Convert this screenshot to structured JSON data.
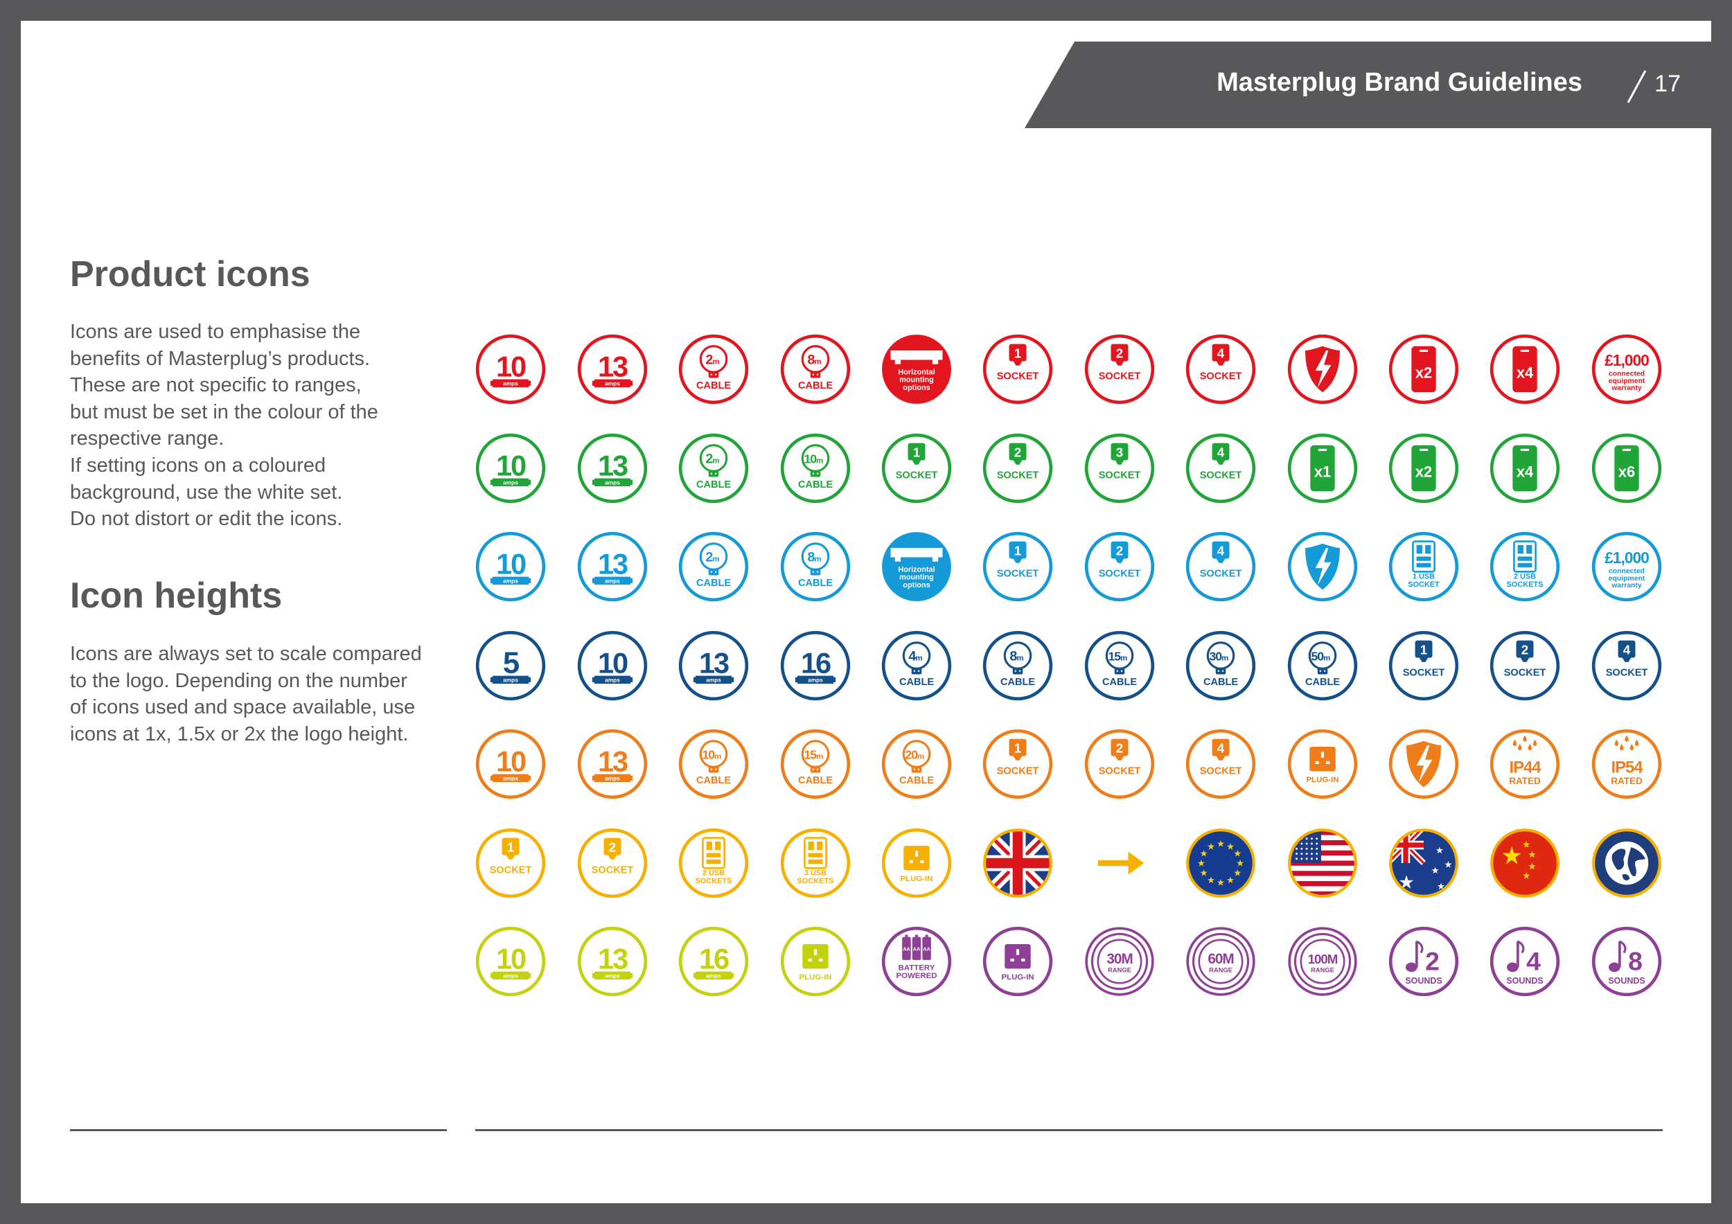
{
  "header": {
    "title": "Masterplug Brand Guidelines",
    "page_number": "17",
    "band_color": "#58585a"
  },
  "sections": {
    "product_icons": {
      "heading": "Product icons",
      "lines": [
        "Icons are used to emphasise the",
        "benefits of Masterplug’s products.",
        "These are not specific to ranges,",
        "but must be set in the colour of the",
        "respective range.",
        "If setting icons on a coloured",
        "background, use the white set.",
        "Do not distort or edit the icons."
      ]
    },
    "icon_heights": {
      "heading": "Icon heights",
      "lines": [
        "Icons are always set to scale compared",
        "to the logo. Depending on the number",
        "of icons used and space available, use",
        "icons at 1x, 1.5x or 2x the logo height."
      ]
    }
  },
  "icon_rows": [
    {
      "color": "#e3151e",
      "icons": [
        {
          "kind": "amps",
          "value": "10",
          "unit": "amps",
          "name": "10-amps-icon"
        },
        {
          "kind": "amps",
          "value": "13",
          "unit": "amps",
          "name": "13-amps-icon"
        },
        {
          "kind": "cable",
          "value": "2",
          "unit": "m",
          "label": "CABLE",
          "name": "2m-cable-icon"
        },
        {
          "kind": "cable",
          "value": "8",
          "unit": "m",
          "label": "CABLE",
          "name": "8m-cable-icon"
        },
        {
          "kind": "mount",
          "label_lines": [
            "Horizontal",
            "mounting",
            "options"
          ],
          "name": "horizontal-mounting-icon"
        },
        {
          "kind": "socket",
          "value": "1",
          "label": "SOCKET",
          "name": "1-socket-icon"
        },
        {
          "kind": "socket",
          "value": "2",
          "label": "SOCKET",
          "name": "2-socket-icon"
        },
        {
          "kind": "socket",
          "value": "4",
          "label": "SOCKET",
          "name": "4-socket-icon"
        },
        {
          "kind": "surge",
          "name": "surge-protection-icon"
        },
        {
          "kind": "pack",
          "value": "x2",
          "name": "x2-pack-icon"
        },
        {
          "kind": "pack",
          "value": "x4",
          "name": "x4-pack-icon"
        },
        {
          "kind": "warranty",
          "value": "£1,000",
          "label_lines": [
            "connected",
            "equipment",
            "warranty"
          ],
          "name": "warranty-icon"
        }
      ]
    },
    {
      "color": "#22a538",
      "icons": [
        {
          "kind": "amps",
          "value": "10",
          "unit": "amps",
          "name": "10-amps-icon"
        },
        {
          "kind": "amps",
          "value": "13",
          "unit": "amps",
          "name": "13-amps-icon"
        },
        {
          "kind": "cable",
          "value": "2",
          "unit": "m",
          "label": "CABLE",
          "name": "2m-cable-icon"
        },
        {
          "kind": "cable",
          "value": "10",
          "unit": "m",
          "label": "CABLE",
          "name": "10m-cable-icon"
        },
        {
          "kind": "socket",
          "value": "1",
          "label": "SOCKET",
          "name": "1-socket-icon"
        },
        {
          "kind": "socket",
          "value": "2",
          "label": "SOCKET",
          "name": "2-socket-icon"
        },
        {
          "kind": "socket",
          "value": "3",
          "label": "SOCKET",
          "name": "3-socket-icon"
        },
        {
          "kind": "socket",
          "value": "4",
          "label": "SOCKET",
          "name": "4-socket-icon"
        },
        {
          "kind": "pack",
          "value": "x1",
          "name": "x1-pack-icon"
        },
        {
          "kind": "pack",
          "value": "x2",
          "name": "x2-pack-icon"
        },
        {
          "kind": "pack",
          "value": "x4",
          "name": "x4-pack-icon"
        },
        {
          "kind": "pack",
          "value": "x6",
          "name": "x6-pack-icon"
        }
      ]
    },
    {
      "color": "#159ad8",
      "icons": [
        {
          "kind": "amps",
          "value": "10",
          "unit": "amps",
          "name": "10-amps-icon"
        },
        {
          "kind": "amps",
          "value": "13",
          "unit": "amps",
          "name": "13-amps-icon"
        },
        {
          "kind": "cable",
          "value": "2",
          "unit": "m",
          "label": "CABLE",
          "name": "2m-cable-icon"
        },
        {
          "kind": "cable",
          "value": "8",
          "unit": "m",
          "label": "CABLE",
          "name": "8m-cable-icon"
        },
        {
          "kind": "mount",
          "label_lines": [
            "Horizontal",
            "mounting",
            "options"
          ],
          "name": "horizontal-mounting-icon"
        },
        {
          "kind": "socket",
          "value": "1",
          "label": "SOCKET",
          "name": "1-socket-icon"
        },
        {
          "kind": "socket",
          "value": "2",
          "label": "SOCKET",
          "name": "2-socket-icon"
        },
        {
          "kind": "socket",
          "value": "4",
          "label": "SOCKET",
          "name": "4-socket-icon"
        },
        {
          "kind": "surge",
          "name": "surge-protection-icon"
        },
        {
          "kind": "usb",
          "label_lines": [
            "1 USB",
            "SOCKET"
          ],
          "name": "1-usb-socket-icon"
        },
        {
          "kind": "usb",
          "label_lines": [
            "2 USB",
            "SOCKETS"
          ],
          "name": "2-usb-sockets-icon"
        },
        {
          "kind": "warranty",
          "value": "£1,000",
          "label_lines": [
            "connected",
            "equipment",
            "warranty"
          ],
          "name": "warranty-icon"
        }
      ]
    },
    {
      "color": "#14508a",
      "icons": [
        {
          "kind": "amps",
          "value": "5",
          "unit": "amps",
          "name": "5-amps-icon"
        },
        {
          "kind": "amps",
          "value": "10",
          "unit": "amps",
          "name": "10-amps-icon"
        },
        {
          "kind": "amps",
          "value": "13",
          "unit": "amps",
          "name": "13-amps-icon"
        },
        {
          "kind": "amps",
          "value": "16",
          "unit": "amps",
          "name": "16-amps-icon"
        },
        {
          "kind": "cable",
          "value": "4",
          "unit": "m",
          "label": "CABLE",
          "name": "4m-cable-icon"
        },
        {
          "kind": "cable",
          "value": "8",
          "unit": "m",
          "label": "CABLE",
          "name": "8m-cable-icon"
        },
        {
          "kind": "cable",
          "value": "15",
          "unit": "m",
          "label": "CABLE",
          "name": "15m-cable-icon"
        },
        {
          "kind": "cable",
          "value": "30",
          "unit": "m",
          "label": "CABLE",
          "name": "30m-cable-icon"
        },
        {
          "kind": "cable",
          "value": "50",
          "unit": "m",
          "label": "CABLE",
          "name": "50m-cable-icon"
        },
        {
          "kind": "socket",
          "value": "1",
          "label": "SOCKET",
          "name": "1-socket-icon"
        },
        {
          "kind": "socket",
          "value": "2",
          "label": "SOCKET",
          "name": "2-socket-icon"
        },
        {
          "kind": "socket",
          "value": "4",
          "label": "SOCKET",
          "name": "4-socket-icon"
        }
      ]
    },
    {
      "color": "#ef7d1a",
      "icons": [
        {
          "kind": "amps",
          "value": "10",
          "unit": "amps",
          "name": "10-amps-icon"
        },
        {
          "kind": "amps",
          "value": "13",
          "unit": "amps",
          "name": "13-amps-icon"
        },
        {
          "kind": "cable",
          "value": "10",
          "unit": "m",
          "label": "CABLE",
          "name": "10m-cable-icon"
        },
        {
          "kind": "cable",
          "value": "15",
          "unit": "m",
          "label": "CABLE",
          "name": "15m-cable-icon"
        },
        {
          "kind": "cable",
          "value": "20",
          "unit": "m",
          "label": "CABLE",
          "name": "20m-cable-icon"
        },
        {
          "kind": "socket",
          "value": "1",
          "label": "SOCKET",
          "name": "1-socket-icon"
        },
        {
          "kind": "socket",
          "value": "2",
          "label": "SOCKET",
          "name": "2-socket-icon"
        },
        {
          "kind": "socket",
          "value": "4",
          "label": "SOCKET",
          "name": "4-socket-icon"
        },
        {
          "kind": "plugin",
          "label": "PLUG-IN",
          "name": "plug-in-icon"
        },
        {
          "kind": "surge",
          "name": "surge-protection-icon"
        },
        {
          "kind": "ip",
          "value": "IP44",
          "label": "RATED",
          "name": "ip44-rated-icon"
        },
        {
          "kind": "ip",
          "value": "IP54",
          "label": "RATED",
          "name": "ip54-rated-icon"
        }
      ]
    },
    {
      "color": "#f8b000",
      "icons": [
        {
          "kind": "socket",
          "value": "1",
          "label": "SOCKET",
          "name": "1-socket-icon"
        },
        {
          "kind": "socket",
          "value": "2",
          "label": "SOCKET",
          "name": "2-socket-icon"
        },
        {
          "kind": "usb",
          "label_lines": [
            "2 USB",
            "SOCKETS"
          ],
          "name": "2-usb-sockets-icon"
        },
        {
          "kind": "usb",
          "label_lines": [
            "3 USB",
            "SOCKETS"
          ],
          "name": "3-usb-sockets-icon"
        },
        {
          "kind": "plugin",
          "label": "PLUG-IN",
          "name": "plug-in-icon"
        },
        {
          "kind": "flag-uk",
          "name": "uk-flag-icon"
        },
        {
          "kind": "arrow",
          "name": "arrow-right-icon"
        },
        {
          "kind": "flag-eu",
          "name": "eu-flag-icon"
        },
        {
          "kind": "flag-us",
          "name": "us-flag-icon"
        },
        {
          "kind": "flag-au",
          "name": "australia-flag-icon"
        },
        {
          "kind": "flag-cn",
          "name": "china-flag-icon"
        },
        {
          "kind": "globe",
          "name": "globe-icon"
        }
      ]
    },
    {
      "color": "#c3d20d",
      "icons": [
        {
          "kind": "amps",
          "value": "10",
          "unit": "amps",
          "name": "10-amps-icon"
        },
        {
          "kind": "amps",
          "value": "13",
          "unit": "amps",
          "name": "13-amps-icon"
        },
        {
          "kind": "amps",
          "value": "16",
          "unit": "amps",
          "name": "16-amps-icon"
        },
        {
          "kind": "plugin",
          "label": "PLUG-IN",
          "name": "plug-in-icon"
        },
        {
          "kind": "battery",
          "color": "#8e3f96",
          "label_lines": [
            "BATTERY",
            "POWERED"
          ],
          "cell_label": "AA",
          "name": "battery-powered-icon"
        },
        {
          "kind": "plugin",
          "color": "#8e3f96",
          "label": "PLUG-IN",
          "name": "plug-in-icon"
        },
        {
          "kind": "range",
          "color": "#8e3f96",
          "value": "30M",
          "label": "RANGE",
          "name": "30m-range-icon"
        },
        {
          "kind": "range",
          "color": "#8e3f96",
          "value": "60M",
          "label": "RANGE",
          "name": "60m-range-icon"
        },
        {
          "kind": "range",
          "color": "#8e3f96",
          "value": "100M",
          "label": "RANGE",
          "name": "100m-range-icon"
        },
        {
          "kind": "sounds",
          "color": "#8e3f96",
          "value": "2",
          "label": "SOUNDS",
          "name": "2-sounds-icon"
        },
        {
          "kind": "sounds",
          "color": "#8e3f96",
          "value": "4",
          "label": "SOUNDS",
          "name": "4-sounds-icon"
        },
        {
          "kind": "sounds",
          "color": "#8e3f96",
          "value": "8",
          "label": "SOUNDS",
          "name": "8-sounds-icon"
        }
      ]
    }
  ]
}
